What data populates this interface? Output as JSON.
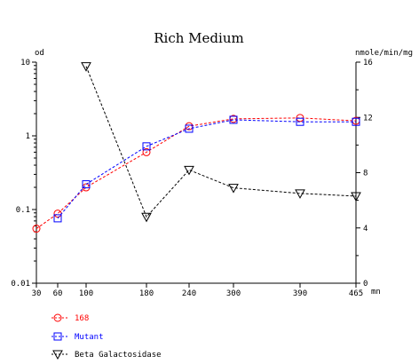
{
  "chart_data": {
    "type": "line",
    "title": "Rich Medium",
    "xlabel": "mn",
    "ylabel_left": "od",
    "ylabel_right": "nmole/min/mg",
    "x_ticks": [
      30,
      60,
      100,
      180,
      240,
      300,
      390,
      465
    ],
    "x_tick_labels": [
      "30",
      "60",
      "100",
      "180",
      "240",
      "300",
      "390",
      "465"
    ],
    "ylim_left": [
      0.01,
      10
    ],
    "yscale_left": "log",
    "y_ticks_left": [
      0.01,
      0.1,
      1,
      10
    ],
    "y_tick_labels_left": [
      "0.01",
      "0.1",
      "1",
      "10"
    ],
    "ylim_right": [
      0,
      16
    ],
    "y_ticks_right": [
      0,
      4,
      8,
      12,
      16
    ],
    "y_tick_labels_right": [
      "0",
      "4",
      "8",
      "12",
      "16"
    ],
    "grid": false,
    "legend_position": "bottom-left",
    "series": [
      {
        "name": "168",
        "axis": "left",
        "marker": "circle",
        "color": "#ff0000",
        "line_color": "#ff0000",
        "x": [
          30,
          60,
          100,
          180,
          240,
          300,
          390,
          465
        ],
        "y": [
          0.055,
          0.088,
          0.2,
          0.6,
          1.35,
          1.7,
          1.75,
          1.6
        ]
      },
      {
        "name": "Mutant",
        "axis": "left",
        "marker": "square",
        "color": "#0000ff",
        "line_color": "#0000ff",
        "x": [
          60,
          100,
          180,
          240,
          300,
          390,
          465
        ],
        "y": [
          0.076,
          0.22,
          0.72,
          1.25,
          1.65,
          1.55,
          1.55
        ]
      },
      {
        "name": "Beta Galactosidase",
        "axis": "right",
        "marker": "triangle-down",
        "color": "#000000",
        "line_color": "#000000",
        "x": [
          100,
          180,
          240,
          300,
          390,
          465
        ],
        "y": [
          15.7,
          4.8,
          8.2,
          6.9,
          6.5,
          6.3
        ]
      }
    ]
  }
}
